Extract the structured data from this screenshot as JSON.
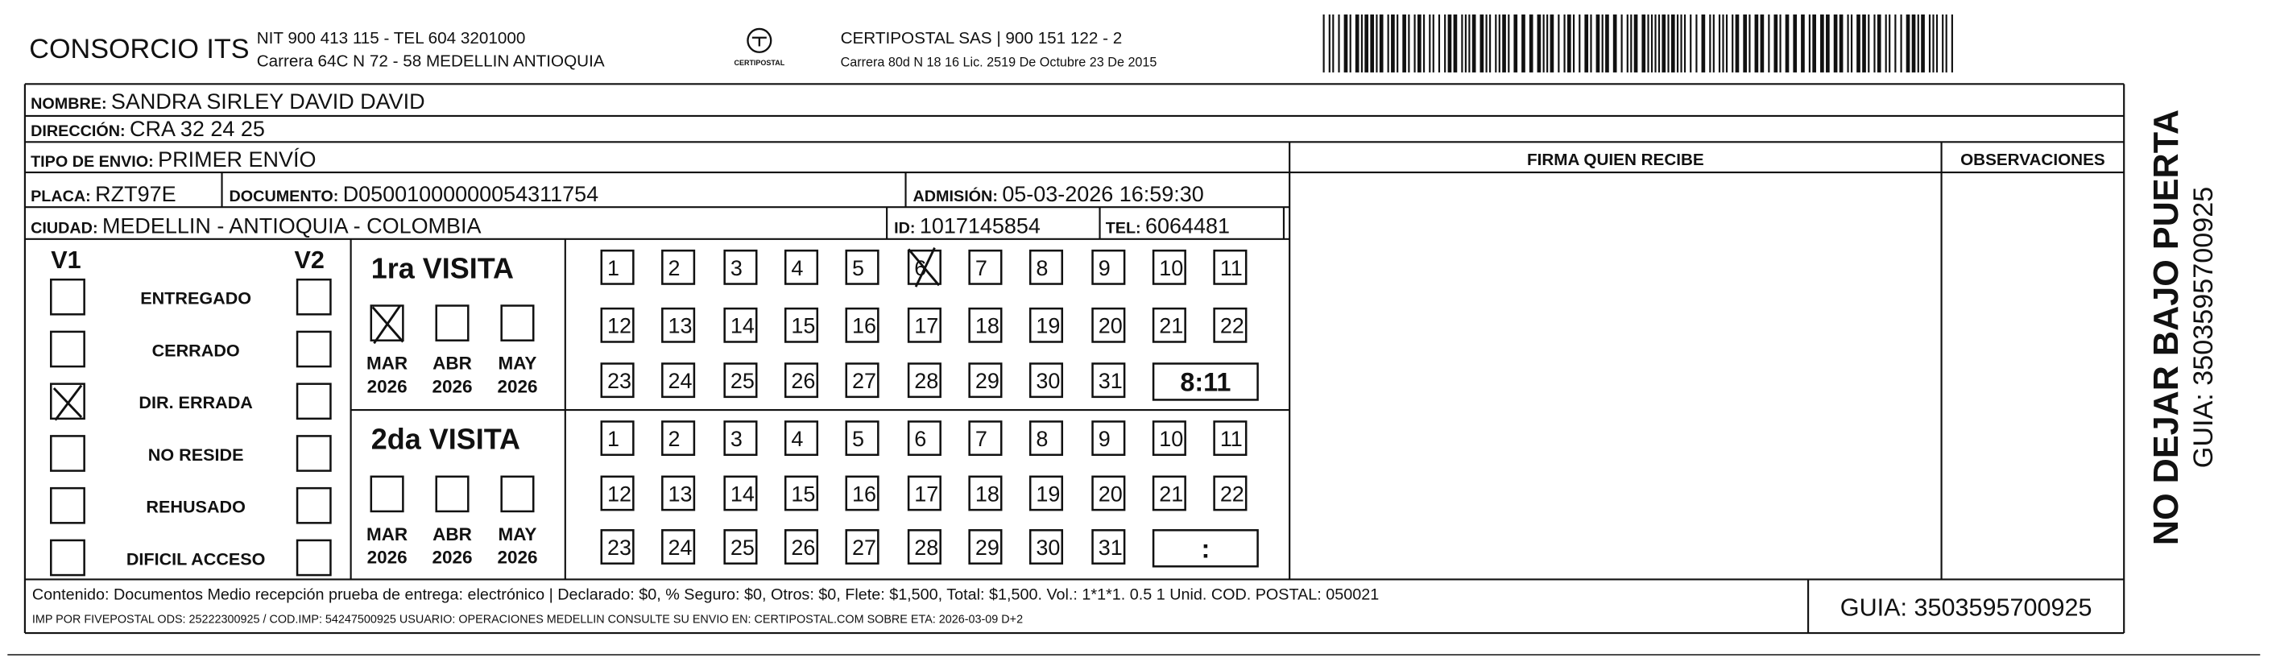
{
  "header": {
    "company": "CONSORCIO ITS",
    "company_line1": "NIT 900 413 115 - TEL 604 3201000",
    "company_line2": "Carrera 64C N 72 - 58 MEDELLIN ANTIOQUIA",
    "logo_text": "CERTIPOSTAL",
    "carrier_line1": "CERTIPOSTAL SAS | 900 151 122 - 2",
    "carrier_line2": "Carrera 80d N 18 16 Lic. 2519 De Octubre 23 De 2015"
  },
  "recipient": {
    "nombre": {
      "label": "NOMBRE:",
      "value": "SANDRA SIRLEY DAVID DAVID"
    },
    "direccion": {
      "label": "DIRECCIÓN:",
      "value": "CRA 32 24 25"
    },
    "tipo_envio": {
      "label": "TIPO DE ENVIO:",
      "value": "PRIMER ENVÍO"
    },
    "placa": {
      "label": "PLACA:",
      "value": "RZT97E"
    },
    "documento": {
      "label": "DOCUMENTO:",
      "value": "D05001000000054311754"
    },
    "admision": {
      "label": "ADMISIÓN:",
      "value": "05-03-2026 16:59:30"
    },
    "ciudad": {
      "label": "CIUDAD:",
      "value": "MEDELLIN - ANTIOQUIA - COLOMBIA"
    },
    "id": {
      "label": "ID:",
      "value": "1017145854"
    },
    "tel": {
      "label": "TEL:",
      "value": "6064481"
    }
  },
  "signature": {
    "firma": "FIRMA QUIEN RECIBE",
    "observaciones": "OBSERVACIONES"
  },
  "status": {
    "v1": "V1",
    "v2": "V2",
    "reasons": [
      "ENTREGADO",
      "CERRADO",
      "DIR. ERRADA",
      "NO RESIDE",
      "REHUSADO",
      "DIFICIL ACCESO"
    ]
  },
  "visits": [
    {
      "title": "1ra VISITA",
      "months": [
        {
          "month": "MAR",
          "year": "2026"
        },
        {
          "month": "ABR",
          "year": "2026"
        },
        {
          "month": "MAY",
          "year": "2026"
        }
      ],
      "days": [
        1,
        2,
        3,
        4,
        5,
        6,
        7,
        8,
        9,
        10,
        11,
        12,
        13,
        14,
        15,
        16,
        17,
        18,
        19,
        20,
        21,
        22,
        23,
        24,
        25,
        26,
        27,
        28,
        29,
        30,
        31
      ],
      "time": "8:11"
    },
    {
      "title": "2da VISITA",
      "months": [
        {
          "month": "MAR",
          "year": "2026"
        },
        {
          "month": "ABR",
          "year": "2026"
        },
        {
          "month": "MAY",
          "year": "2026"
        }
      ],
      "days": [
        1,
        2,
        3,
        4,
        5,
        6,
        7,
        8,
        9,
        10,
        11,
        12,
        13,
        14,
        15,
        16,
        17,
        18,
        19,
        20,
        21,
        22,
        23,
        24,
        25,
        26,
        27,
        28,
        29,
        30,
        31
      ],
      "time": ":"
    }
  ],
  "footer": {
    "line1": "Contenido: Documentos Medio recepción prueba de entrega: electrónico | Declarado: $0, % Seguro: $0, Otros: $0, Flete: $1,500, Total: $1,500. Vol.: 1*1*1. 0.5  1 Unid. COD. POSTAL: 050021",
    "line2": "IMP POR FIVEPOSTAL ODS: 25222300925 / COD.IMP: 54247500925 USUARIO: OPERACIONES MEDELLIN CONSULTE SU ENVIO EN: CERTIPOSTAL.COM SOBRE ETA: 2026-03-09 D+2",
    "guia": "GUIA: 3503595700925"
  },
  "side": {
    "warning": "NO DEJAR BAJO PUERTA",
    "guia": "GUIA: 3503595700925"
  }
}
